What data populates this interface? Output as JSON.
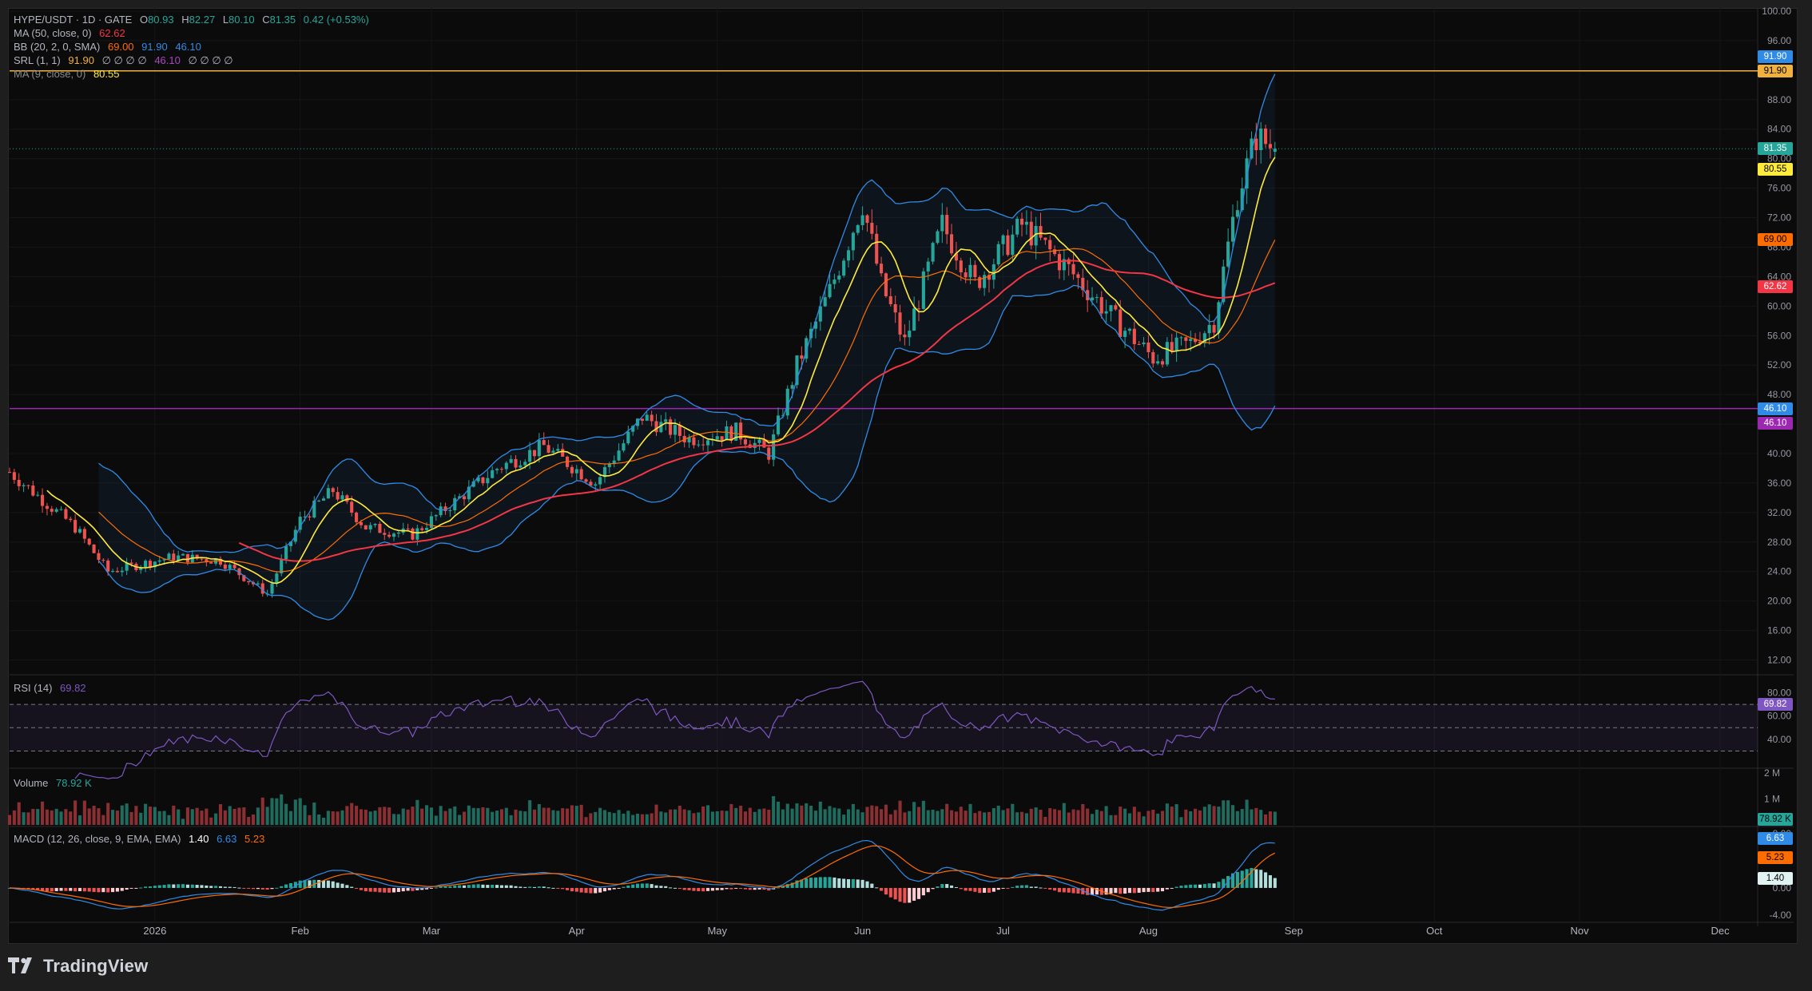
{
  "header": {
    "symbol": "HYPE/USDT · 1D · GATE",
    "o_label": "O",
    "o": "80.93",
    "h_label": "H",
    "h": "82.27",
    "l_label": "L",
    "l": "80.10",
    "c_label": "C",
    "c": "81.35",
    "change": "0.42 (+0.53%)"
  },
  "indicators": {
    "ma50": {
      "label": "MA (50, close, 0)",
      "value": "62.62",
      "color": "#f23645"
    },
    "bb": {
      "label": "BB (20, 2, 0, SMA)",
      "basis": "69.00",
      "upper": "91.90",
      "lower": "46.10",
      "basis_color": "#ff6d00",
      "band_color": "#2f8be6"
    },
    "srl": {
      "label": "SRL (1, 1)",
      "v1": "91.90",
      "v2": "46.10",
      "empties": "∅  ∅  ∅  ∅",
      "empties2": "∅  ∅  ∅  ∅",
      "color1": "#f0b13f",
      "color2": "#9c27b0"
    },
    "ma9": {
      "label": "MA (9, close, 0)",
      "value": "80.55",
      "color": "#ffeb3b"
    }
  },
  "price_axis": {
    "ticks": [
      "100.00",
      "96.00",
      "92.00",
      "88.00",
      "84.00",
      "80.00",
      "76.00",
      "72.00",
      "68.00",
      "64.00",
      "60.00",
      "56.00",
      "52.00",
      "48.00",
      "44.00",
      "40.00",
      "36.00",
      "32.00",
      "28.00",
      "24.00",
      "20.00",
      "16.00",
      "12.00"
    ],
    "tags": [
      {
        "text": "91.90",
        "value": 91.9,
        "bg": "#2f8be6",
        "fg": "#ffffff",
        "offset": -18
      },
      {
        "text": "91.90",
        "value": 91.9,
        "bg": "#f0b13f",
        "fg": "#000000",
        "offset": 0
      },
      {
        "text": "81.35",
        "value": 81.35,
        "bg": "#26a69a",
        "fg": "#ffffff",
        "offset": 0
      },
      {
        "text": "80.55",
        "value": 80.55,
        "bg": "#ffeb3b",
        "fg": "#000000",
        "offset": 18
      },
      {
        "text": "69.00",
        "value": 69.0,
        "bg": "#ff6d00",
        "fg": "#000000",
        "offset": 0
      },
      {
        "text": "62.62",
        "value": 62.62,
        "bg": "#f23645",
        "fg": "#ffffff",
        "offset": 0
      },
      {
        "text": "46.10",
        "value": 46.1,
        "bg": "#2f8be6",
        "fg": "#ffffff",
        "offset": 0
      },
      {
        "text": "46.10",
        "value": 46.1,
        "bg": "#9c27b0",
        "fg": "#ffffff",
        "offset": 18
      }
    ]
  },
  "rsi": {
    "label": "RSI (14)",
    "value": "69.82",
    "ticks": [
      "80.00",
      "60.00",
      "40.00"
    ],
    "color": "#7e57c2"
  },
  "volume": {
    "label": "Volume",
    "value": "78.92 K",
    "ticks": [
      "2 M",
      "1 M"
    ]
  },
  "macd": {
    "label": "MACD (12, 26, close, 9, EMA, EMA)",
    "hist": "1.40",
    "macd": "6.63",
    "signal": "5.23",
    "ticks": [
      "8.00",
      "4.00",
      "0.00",
      "-4.00"
    ],
    "macd_color": "#2f8be6",
    "signal_color": "#ff6d00"
  },
  "time_axis": {
    "labels": [
      "2026",
      "Feb",
      "Mar",
      "Apr",
      "May",
      "Jun",
      "Jul",
      "Aug",
      "Sep",
      "Oct",
      "Nov",
      "Dec"
    ]
  },
  "footer": {
    "brand": "TradingView"
  },
  "chart_data": {
    "type": "candlestick",
    "symbol": "HYPE/USDT",
    "timeframe": "1D",
    "x_range": [
      "2025-12-01",
      "2026-12-09"
    ],
    "y_range": [
      10,
      100
    ],
    "closes_approx": [
      {
        "date": "2025-12-01",
        "close": 37.5
      },
      {
        "date": "2025-12-15",
        "close": 30.0
      },
      {
        "date": "2025-12-22",
        "close": 24.0
      },
      {
        "date": "2026-01-05",
        "close": 26.0
      },
      {
        "date": "2026-01-15",
        "close": 25.5
      },
      {
        "date": "2026-01-25",
        "close": 21.0
      },
      {
        "date": "2026-02-01",
        "close": 31.0
      },
      {
        "date": "2026-02-08",
        "close": 35.0
      },
      {
        "date": "2026-02-15",
        "close": 30.0
      },
      {
        "date": "2026-02-25",
        "close": 29.0
      },
      {
        "date": "2026-03-05",
        "close": 33.0
      },
      {
        "date": "2026-03-15",
        "close": 38.0
      },
      {
        "date": "2026-03-25",
        "close": 41.0
      },
      {
        "date": "2026-04-05",
        "close": 36.0
      },
      {
        "date": "2026-04-15",
        "close": 45.0
      },
      {
        "date": "2026-04-25",
        "close": 42.0
      },
      {
        "date": "2026-05-05",
        "close": 43.0
      },
      {
        "date": "2026-05-12",
        "close": 40.0
      },
      {
        "date": "2026-05-18",
        "close": 52.0
      },
      {
        "date": "2026-05-25",
        "close": 62.0
      },
      {
        "date": "2026-06-01",
        "close": 74.0
      },
      {
        "date": "2026-06-05",
        "close": 63.0
      },
      {
        "date": "2026-06-10",
        "close": 55.0
      },
      {
        "date": "2026-06-18",
        "close": 71.0
      },
      {
        "date": "2026-06-25",
        "close": 63.0
      },
      {
        "date": "2026-07-05",
        "close": 71.0
      },
      {
        "date": "2026-07-15",
        "close": 65.0
      },
      {
        "date": "2026-07-25",
        "close": 58.0
      },
      {
        "date": "2026-08-02",
        "close": 53.0
      },
      {
        "date": "2026-08-10",
        "close": 55.0
      },
      {
        "date": "2026-08-15",
        "close": 58.0
      },
      {
        "date": "2026-08-20",
        "close": 75.0
      },
      {
        "date": "2026-08-24",
        "close": 83.0
      },
      {
        "date": "2026-08-28",
        "close": 81.35
      }
    ],
    "last_ohlc": {
      "open": 80.93,
      "high": 82.27,
      "low": 80.1,
      "close": 81.35
    },
    "horizontal_levels": [
      91.9,
      46.1
    ],
    "series": [
      {
        "name": "MA (50, close, 0)",
        "last": 62.62
      },
      {
        "name": "BB (20, 2, 0, SMA)",
        "basis": 69.0,
        "upper": 91.9,
        "lower": 46.1
      },
      {
        "name": "MA (9, close, 0)",
        "last": 80.55
      },
      {
        "name": "RSI (14)",
        "last": 69.82
      },
      {
        "name": "Volume",
        "last": "78.92 K"
      },
      {
        "name": "MACD (12, 26, close, 9, EMA, EMA)",
        "histogram": 1.4,
        "macd": 6.63,
        "signal": 5.23
      }
    ]
  }
}
